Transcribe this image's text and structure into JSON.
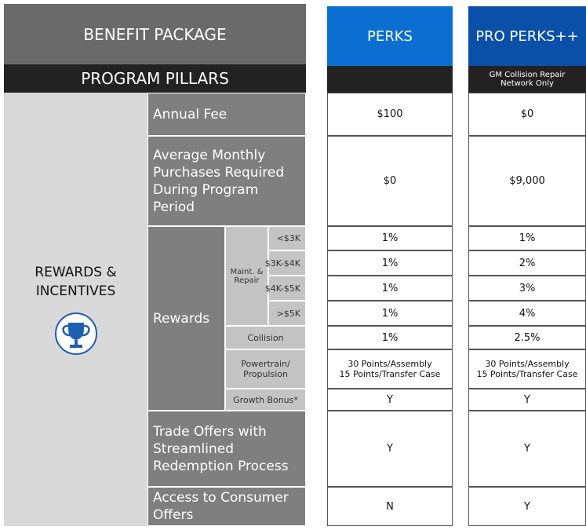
{
  "header": {
    "title": "BENEFIT PACKAGE",
    "pillars": "PROGRAM PILLARS",
    "pillar": "REWARDS & INCENTIVES"
  },
  "columns": [
    {
      "name": "PERKS"
    },
    {
      "name": "PRO PERKS++",
      "note": "GM Collision Repair Network Only"
    }
  ],
  "rewards": {
    "label": "Rewards",
    "group": "Maint. & Repair"
  },
  "rows": [
    {
      "label": "Annual Fee",
      "values": [
        "$100",
        "$0"
      ]
    },
    {
      "label": "Average Monthly Purchases Required During Program Period",
      "values": [
        "$0",
        "$9,000"
      ]
    },
    {
      "label": "<$3K",
      "values": [
        "1%",
        "1%"
      ]
    },
    {
      "label": "$3K-$4K",
      "values": [
        "1%",
        "2%"
      ]
    },
    {
      "label": "$4K-$5K",
      "values": [
        "1%",
        "3%"
      ]
    },
    {
      "label": ">$5K",
      "values": [
        "1%",
        "4%"
      ]
    },
    {
      "label": "Collision",
      "values": [
        "1%",
        "2.5%"
      ]
    },
    {
      "label": "Powertrain/ Propulsion",
      "values": [
        [
          "30 Points/Assembly",
          "15 Points/Transfer Case"
        ],
        [
          "30 Points/Assembly",
          "15 Points/Transfer Case"
        ]
      ]
    },
    {
      "label": "Growth Bonus*",
      "values": [
        "Y",
        "Y"
      ]
    },
    {
      "label": "Trade Offers with Streamlined Redemption Process",
      "values": [
        "Y",
        "Y"
      ]
    },
    {
      "label": "Access to Consumer Offers",
      "values": [
        "N",
        "Y"
      ]
    }
  ]
}
